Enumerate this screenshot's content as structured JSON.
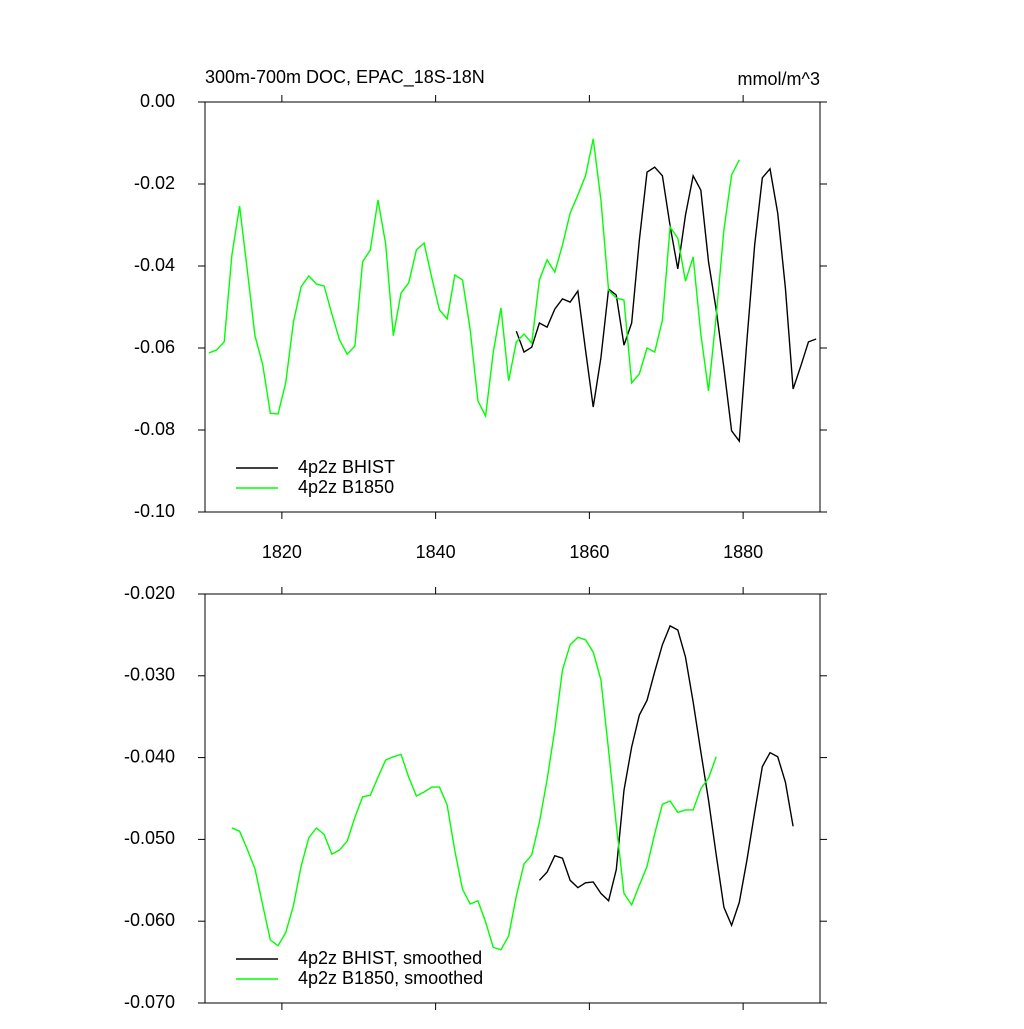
{
  "chart_data": [
    {
      "type": "line",
      "title": "300m-700m DOC, EPAC_18S-18N",
      "units": "mmol/m^3",
      "xlim": [
        1810,
        1890
      ],
      "xticks": [
        1820,
        1840,
        1860,
        1880
      ],
      "show_xtick_labels": true,
      "ylim": [
        -0.1,
        0
      ],
      "yticks": [
        {
          "value": 0,
          "label": "0.00"
        },
        -0.02,
        -0.04,
        -0.06,
        -0.08,
        {
          "value": -0.1,
          "label": "-0.10"
        }
      ],
      "legend": "lower left",
      "series": [
        {
          "name": "4p2z BHIST",
          "color": "#000000",
          "x": [
            1850.5,
            1851.5,
            1852.5,
            1853.5,
            1854.5,
            1855.5,
            1856.5,
            1857.5,
            1858.5,
            1859.5,
            1860.5,
            1861.5,
            1862.5,
            1863.5,
            1864.5,
            1865.5,
            1866.5,
            1867.5,
            1868.5,
            1869.5,
            1870.5,
            1871.5,
            1872.5,
            1873.5,
            1874.5,
            1875.5,
            1876.5,
            1877.5,
            1878.5,
            1879.5,
            1880.5,
            1881.5,
            1882.5,
            1883.5,
            1884.5,
            1885.5,
            1886.5,
            1887.5,
            1888.5,
            1889.5
          ],
          "values": [
            -0.0559,
            -0.061,
            -0.0598,
            -0.0539,
            -0.0549,
            -0.0505,
            -0.048,
            -0.0488,
            -0.0461,
            -0.0605,
            -0.0744,
            -0.0624,
            -0.0456,
            -0.0471,
            -0.0593,
            -0.0539,
            -0.0337,
            -0.0171,
            -0.0159,
            -0.018,
            -0.0302,
            -0.0407,
            -0.0276,
            -0.018,
            -0.0215,
            -0.039,
            -0.0507,
            -0.0649,
            -0.0802,
            -0.0827,
            -0.058,
            -0.0349,
            -0.0185,
            -0.0163,
            -0.0271,
            -0.0454,
            -0.07,
            -0.0644,
            -0.0585,
            -0.0578
          ]
        },
        {
          "name": "4p2z B1850",
          "color": "#00ff00",
          "x": [
            1810.5,
            1811.5,
            1812.5,
            1813.5,
            1814.5,
            1815.5,
            1816.5,
            1817.5,
            1818.5,
            1819.5,
            1820.5,
            1821.5,
            1822.5,
            1823.5,
            1824.5,
            1825.5,
            1826.5,
            1827.5,
            1828.5,
            1829.5,
            1830.5,
            1831.5,
            1832.5,
            1833.5,
            1834.5,
            1835.5,
            1836.5,
            1837.5,
            1838.5,
            1839.5,
            1840.5,
            1841.5,
            1842.5,
            1843.5,
            1844.5,
            1845.5,
            1846.5,
            1847.5,
            1848.5,
            1849.5,
            1850.5,
            1851.5,
            1852.5,
            1853.5,
            1854.5,
            1855.5,
            1856.5,
            1857.5,
            1858.5,
            1859.5,
            1860.5,
            1861.5,
            1862.5,
            1863.5,
            1864.5,
            1865.5,
            1866.5,
            1867.5,
            1868.5,
            1869.5,
            1870.5,
            1871.5,
            1872.5,
            1873.5,
            1874.5,
            1875.5,
            1876.5,
            1877.5,
            1878.5,
            1879.5
          ],
          "values": [
            -0.0612,
            -0.0605,
            -0.0585,
            -0.0373,
            -0.0254,
            -0.041,
            -0.057,
            -0.064,
            -0.0759,
            -0.0761,
            -0.0685,
            -0.0537,
            -0.0451,
            -0.0424,
            -0.0444,
            -0.0449,
            -0.0517,
            -0.058,
            -0.0615,
            -0.0595,
            -0.039,
            -0.0361,
            -0.0239,
            -0.0346,
            -0.057,
            -0.0466,
            -0.0441,
            -0.0361,
            -0.0344,
            -0.0429,
            -0.0507,
            -0.0529,
            -0.0422,
            -0.0434,
            -0.0556,
            -0.0729,
            -0.0766,
            -0.061,
            -0.0502,
            -0.068,
            -0.0585,
            -0.0566,
            -0.0588,
            -0.0434,
            -0.0385,
            -0.0415,
            -0.0349,
            -0.0271,
            -0.0227,
            -0.018,
            -0.009,
            -0.0239,
            -0.0459,
            -0.0478,
            -0.0483,
            -0.0685,
            -0.0663,
            -0.06,
            -0.061,
            -0.0532,
            -0.0305,
            -0.0332,
            -0.0437,
            -0.0378,
            -0.0566,
            -0.0705,
            -0.0522,
            -0.0312,
            -0.0178,
            -0.0141
          ]
        }
      ]
    },
    {
      "type": "line",
      "xlim": [
        1810,
        1890
      ],
      "xticks": [
        1820,
        1840,
        1860,
        1880
      ],
      "show_xtick_labels": false,
      "ylim": [
        -0.07,
        -0.02
      ],
      "yticks": [
        {
          "value": -0.02,
          "label": "-0.020"
        },
        {
          "value": -0.03,
          "label": "-0.030"
        },
        {
          "value": -0.04,
          "label": "-0.040"
        },
        {
          "value": -0.05,
          "label": "-0.050"
        },
        {
          "value": -0.06,
          "label": "-0.060"
        },
        {
          "value": -0.07,
          "label": "-0.070"
        }
      ],
      "legend": "lower left",
      "series": [
        {
          "name": "4p2z BHIST, smoothed",
          "color": "#000000",
          "x": [
            1853.5,
            1854.5,
            1855.5,
            1856.5,
            1857.5,
            1858.5,
            1859.5,
            1860.5,
            1861.5,
            1862.5,
            1863.5,
            1864.5,
            1865.5,
            1866.5,
            1867.5,
            1868.5,
            1869.5,
            1870.5,
            1871.5,
            1872.5,
            1873.5,
            1874.5,
            1875.5,
            1876.5,
            1877.5,
            1878.5,
            1879.5,
            1880.5,
            1881.5,
            1882.5,
            1883.5,
            1884.5,
            1885.5,
            1886.5
          ],
          "values": [
            -0.055,
            -0.054,
            -0.052,
            -0.0523,
            -0.055,
            -0.0559,
            -0.0553,
            -0.0552,
            -0.0566,
            -0.0575,
            -0.0537,
            -0.044,
            -0.0387,
            -0.0348,
            -0.033,
            -0.0295,
            -0.0262,
            -0.0239,
            -0.0244,
            -0.0277,
            -0.0332,
            -0.0393,
            -0.0452,
            -0.0519,
            -0.0583,
            -0.0605,
            -0.0577,
            -0.0525,
            -0.0467,
            -0.0411,
            -0.0394,
            -0.0399,
            -0.043,
            -0.0484
          ]
        },
        {
          "name": "4p2z B1850, smoothed",
          "color": "#00ff00",
          "x": [
            1813.5,
            1814.5,
            1815.5,
            1816.5,
            1817.5,
            1818.5,
            1819.5,
            1820.5,
            1821.5,
            1822.5,
            1823.5,
            1824.5,
            1825.5,
            1826.5,
            1827.5,
            1828.5,
            1829.5,
            1830.5,
            1831.5,
            1832.5,
            1833.5,
            1834.5,
            1835.5,
            1836.5,
            1837.5,
            1838.5,
            1839.5,
            1840.5,
            1841.5,
            1842.5,
            1843.5,
            1844.5,
            1845.5,
            1846.5,
            1847.5,
            1848.5,
            1849.5,
            1850.5,
            1851.5,
            1852.5,
            1853.5,
            1854.5,
            1855.5,
            1856.5,
            1857.5,
            1858.5,
            1859.5,
            1860.5,
            1861.5,
            1862.5,
            1863.5,
            1864.5,
            1865.5,
            1866.5,
            1867.5,
            1868.5,
            1869.5,
            1870.5,
            1871.5,
            1872.5,
            1873.5,
            1874.5,
            1875.5,
            1876.5
          ],
          "values": [
            -0.0486,
            -0.049,
            -0.0512,
            -0.0536,
            -0.058,
            -0.0623,
            -0.063,
            -0.0614,
            -0.0581,
            -0.0533,
            -0.0498,
            -0.0486,
            -0.0494,
            -0.0518,
            -0.0513,
            -0.0502,
            -0.0473,
            -0.0448,
            -0.0446,
            -0.0424,
            -0.0403,
            -0.0399,
            -0.0396,
            -0.0424,
            -0.0447,
            -0.0442,
            -0.0436,
            -0.0436,
            -0.0458,
            -0.0514,
            -0.0561,
            -0.0579,
            -0.0575,
            -0.0601,
            -0.0632,
            -0.0635,
            -0.0618,
            -0.0569,
            -0.053,
            -0.0519,
            -0.0479,
            -0.0427,
            -0.0366,
            -0.0293,
            -0.0262,
            -0.0253,
            -0.0256,
            -0.0271,
            -0.0305,
            -0.0391,
            -0.0482,
            -0.0566,
            -0.058,
            -0.0556,
            -0.0533,
            -0.0493,
            -0.0457,
            -0.0453,
            -0.0467,
            -0.0464,
            -0.0464,
            -0.0438,
            -0.0425,
            -0.0399
          ]
        }
      ]
    }
  ]
}
